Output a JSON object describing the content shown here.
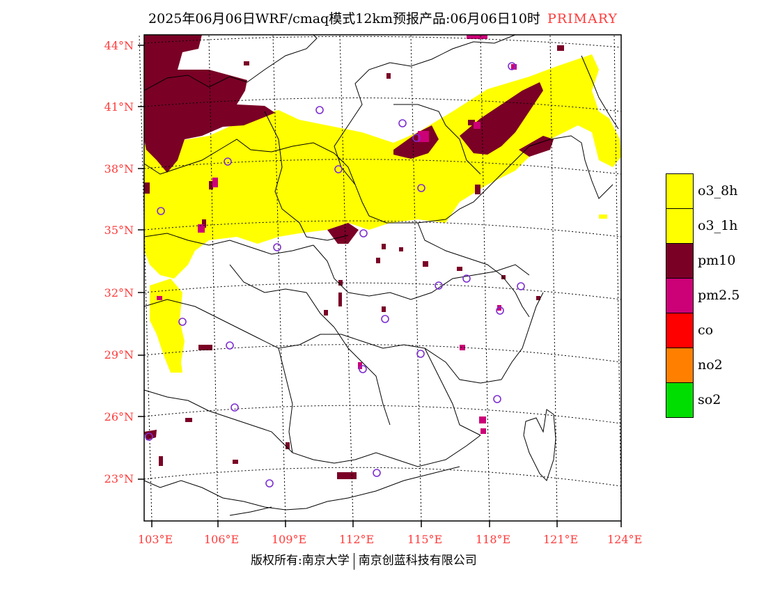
{
  "title": {
    "main": "2025年06月06日WRF/cmaq模式12km预报产品:06月06日10时",
    "tag": "PRIMARY"
  },
  "map": {
    "lat_labels": [
      "44°N",
      "41°N",
      "38°N",
      "35°N",
      "32°N",
      "29°N",
      "26°N",
      "23°N"
    ],
    "lon_labels": [
      "103°E",
      "106°E",
      "109°E",
      "112°E",
      "115°E",
      "118°E",
      "121°E",
      "124°E"
    ],
    "frame_color": "#000000",
    "grid_color": "#000000",
    "station_marker_color": "#7d2fd0"
  },
  "legend": [
    {
      "label": "o3_8h",
      "color": "#ffff00"
    },
    {
      "label": "o3_1h",
      "color": "#ffff00"
    },
    {
      "label": "pm10",
      "color": "#7a0026"
    },
    {
      "label": "pm2.5",
      "color": "#cc0077"
    },
    {
      "label": "co",
      "color": "#ff0000"
    },
    {
      "label": "no2",
      "color": "#ff8000"
    },
    {
      "label": "so2",
      "color": "#00dd00"
    }
  ],
  "footer": {
    "left": "版权所有:南京大学",
    "right": "南京创蓝科技有限公司"
  }
}
